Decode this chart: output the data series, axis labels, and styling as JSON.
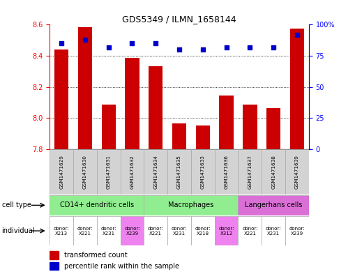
{
  "title": "GDS5349 / ILMN_1658144",
  "samples": [
    "GSM1471629",
    "GSM1471630",
    "GSM1471631",
    "GSM1471632",
    "GSM1471634",
    "GSM1471635",
    "GSM1471633",
    "GSM1471636",
    "GSM1471637",
    "GSM1471638",
    "GSM1471639"
  ],
  "red_values": [
    8.44,
    8.585,
    8.085,
    8.385,
    8.335,
    7.965,
    7.955,
    8.145,
    8.085,
    8.065,
    8.575
  ],
  "blue_values": [
    85,
    88,
    82,
    85,
    85,
    80,
    80,
    82,
    82,
    82,
    92
  ],
  "ylim_left": [
    7.8,
    8.6
  ],
  "ylim_right": [
    0,
    100
  ],
  "yticks_left": [
    7.8,
    8.0,
    8.2,
    8.4,
    8.6
  ],
  "yticks_right": [
    0,
    25,
    50,
    75,
    100
  ],
  "ytick_right_labels": [
    "0",
    "25",
    "50",
    "75",
    "100%"
  ],
  "cell_types": [
    {
      "label": "CD14+ dendritic cells",
      "start": 0,
      "end": 4,
      "color": "#90ee90"
    },
    {
      "label": "Macrophages",
      "start": 4,
      "end": 8,
      "color": "#90ee90"
    },
    {
      "label": "Langerhans cells",
      "start": 8,
      "end": 11,
      "color": "#da70d6"
    }
  ],
  "individuals": [
    {
      "label": "donor:\nX213",
      "idx": 0,
      "color": "#ffffff"
    },
    {
      "label": "donor:\nX221",
      "idx": 1,
      "color": "#ffffff"
    },
    {
      "label": "donor:\nX231",
      "idx": 2,
      "color": "#ffffff"
    },
    {
      "label": "donor:\nX239",
      "idx": 3,
      "color": "#ee82ee"
    },
    {
      "label": "donor:\nX221",
      "idx": 4,
      "color": "#ffffff"
    },
    {
      "label": "donor:\nX231",
      "idx": 5,
      "color": "#ffffff"
    },
    {
      "label": "donor:\nX218",
      "idx": 6,
      "color": "#ffffff"
    },
    {
      "label": "donor:\nX312",
      "idx": 7,
      "color": "#ee82ee"
    },
    {
      "label": "donor:\nX221",
      "idx": 8,
      "color": "#ffffff"
    },
    {
      "label": "donor:\nX231",
      "idx": 9,
      "color": "#ffffff"
    },
    {
      "label": "donor:\nX239",
      "idx": 10,
      "color": "#ffffff"
    }
  ],
  "bar_color": "#cc0000",
  "dot_color": "#0000cc",
  "sample_bg_color": "#d3d3d3",
  "grid_color": "black"
}
